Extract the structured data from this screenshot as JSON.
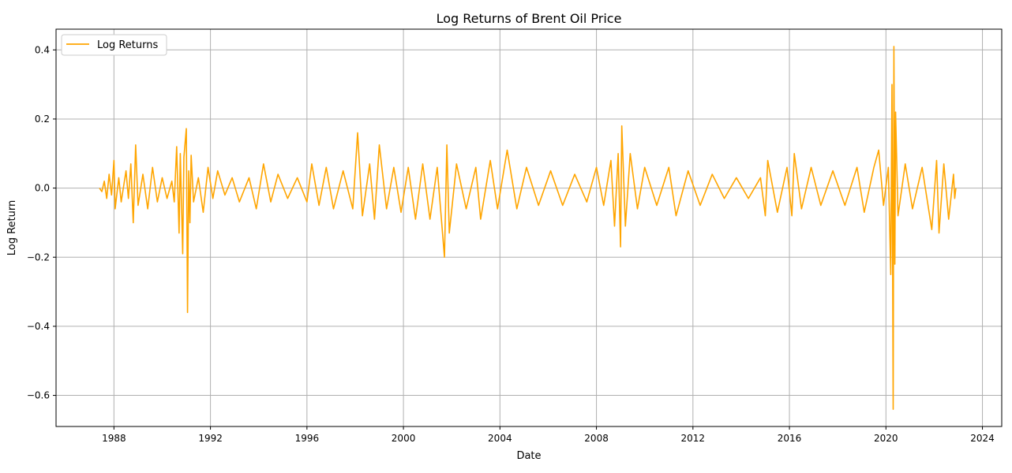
{
  "chart_data": {
    "type": "line",
    "title": "Log Returns of Brent Oil Price",
    "xlabel": "Date",
    "ylabel": "Log Return",
    "grid": true,
    "legend_position": "upper-left",
    "xlim": [
      1985.6,
      2024.8
    ],
    "ylim": [
      -0.69,
      0.46
    ],
    "x_ticks": [
      1988,
      1992,
      1996,
      2000,
      2004,
      2008,
      2012,
      2016,
      2020,
      2024
    ],
    "y_ticks": [
      0.4,
      0.2,
      0.0,
      -0.2,
      -0.4,
      -0.6
    ],
    "x_tick_labels": [
      "1988",
      "1992",
      "1996",
      "2000",
      "2004",
      "2008",
      "2012",
      "2016",
      "2020",
      "2024"
    ],
    "y_tick_labels": [
      "0.4",
      "0.2",
      "0.0",
      "−0.2",
      "−0.4",
      "−0.6"
    ],
    "series": [
      {
        "name": "Log Returns",
        "color": "#FFA500",
        "points": [
          [
            1987.4,
            0.0
          ],
          [
            1987.5,
            -0.01
          ],
          [
            1987.6,
            0.02
          ],
          [
            1987.7,
            -0.03
          ],
          [
            1987.8,
            0.04
          ],
          [
            1987.9,
            -0.02
          ],
          [
            1988.0,
            0.08
          ],
          [
            1988.05,
            -0.06
          ],
          [
            1988.2,
            0.03
          ],
          [
            1988.3,
            -0.04
          ],
          [
            1988.5,
            0.05
          ],
          [
            1988.6,
            -0.03
          ],
          [
            1988.7,
            0.07
          ],
          [
            1988.8,
            -0.1
          ],
          [
            1988.9,
            0.125
          ],
          [
            1989.0,
            -0.05
          ],
          [
            1989.2,
            0.04
          ],
          [
            1989.4,
            -0.06
          ],
          [
            1989.6,
            0.06
          ],
          [
            1989.8,
            -0.04
          ],
          [
            1990.0,
            0.03
          ],
          [
            1990.2,
            -0.03
          ],
          [
            1990.4,
            0.02
          ],
          [
            1990.5,
            -0.04
          ],
          [
            1990.6,
            0.12
          ],
          [
            1990.7,
            -0.13
          ],
          [
            1990.75,
            0.1
          ],
          [
            1990.85,
            -0.19
          ],
          [
            1990.9,
            0.09
          ],
          [
            1991.0,
            0.172
          ],
          [
            1991.05,
            -0.36
          ],
          [
            1991.1,
            0.05
          ],
          [
            1991.15,
            -0.1
          ],
          [
            1991.2,
            0.095
          ],
          [
            1991.3,
            -0.04
          ],
          [
            1991.5,
            0.03
          ],
          [
            1991.7,
            -0.07
          ],
          [
            1991.9,
            0.06
          ],
          [
            1992.1,
            -0.03
          ],
          [
            1992.3,
            0.05
          ],
          [
            1992.6,
            -0.02
          ],
          [
            1992.9,
            0.03
          ],
          [
            1993.2,
            -0.04
          ],
          [
            1993.6,
            0.03
          ],
          [
            1993.9,
            -0.06
          ],
          [
            1994.2,
            0.07
          ],
          [
            1994.5,
            -0.04
          ],
          [
            1994.8,
            0.04
          ],
          [
            1995.2,
            -0.03
          ],
          [
            1995.6,
            0.03
          ],
          [
            1996.0,
            -0.04
          ],
          [
            1996.2,
            0.07
          ],
          [
            1996.5,
            -0.05
          ],
          [
            1996.8,
            0.06
          ],
          [
            1997.1,
            -0.06
          ],
          [
            1997.5,
            0.05
          ],
          [
            1997.9,
            -0.06
          ],
          [
            1998.1,
            0.16
          ],
          [
            1998.3,
            -0.08
          ],
          [
            1998.6,
            0.07
          ],
          [
            1998.8,
            -0.09
          ],
          [
            1999.0,
            0.125
          ],
          [
            1999.3,
            -0.06
          ],
          [
            1999.6,
            0.06
          ],
          [
            1999.9,
            -0.07
          ],
          [
            2000.2,
            0.06
          ],
          [
            2000.5,
            -0.09
          ],
          [
            2000.8,
            0.07
          ],
          [
            2001.1,
            -0.09
          ],
          [
            2001.4,
            0.06
          ],
          [
            2001.7,
            -0.2
          ],
          [
            2001.8,
            0.125
          ],
          [
            2001.9,
            -0.13
          ],
          [
            2002.2,
            0.07
          ],
          [
            2002.6,
            -0.06
          ],
          [
            2003.0,
            0.06
          ],
          [
            2003.2,
            -0.09
          ],
          [
            2003.6,
            0.08
          ],
          [
            2003.9,
            -0.06
          ],
          [
            2004.3,
            0.11
          ],
          [
            2004.7,
            -0.06
          ],
          [
            2005.1,
            0.06
          ],
          [
            2005.6,
            -0.05
          ],
          [
            2006.1,
            0.05
          ],
          [
            2006.6,
            -0.05
          ],
          [
            2007.1,
            0.04
          ],
          [
            2007.6,
            -0.04
          ],
          [
            2008.0,
            0.06
          ],
          [
            2008.3,
            -0.05
          ],
          [
            2008.6,
            0.08
          ],
          [
            2008.75,
            -0.11
          ],
          [
            2008.9,
            0.1
          ],
          [
            2009.0,
            -0.17
          ],
          [
            2009.05,
            0.18
          ],
          [
            2009.2,
            -0.11
          ],
          [
            2009.4,
            0.1
          ],
          [
            2009.7,
            -0.06
          ],
          [
            2010.0,
            0.06
          ],
          [
            2010.5,
            -0.05
          ],
          [
            2011.0,
            0.06
          ],
          [
            2011.3,
            -0.08
          ],
          [
            2011.8,
            0.05
          ],
          [
            2012.3,
            -0.05
          ],
          [
            2012.8,
            0.04
          ],
          [
            2013.3,
            -0.03
          ],
          [
            2013.8,
            0.03
          ],
          [
            2014.3,
            -0.03
          ],
          [
            2014.8,
            0.03
          ],
          [
            2015.0,
            -0.08
          ],
          [
            2015.1,
            0.08
          ],
          [
            2015.5,
            -0.07
          ],
          [
            2015.9,
            0.06
          ],
          [
            2016.1,
            -0.08
          ],
          [
            2016.2,
            0.1
          ],
          [
            2016.5,
            -0.06
          ],
          [
            2016.9,
            0.06
          ],
          [
            2017.3,
            -0.05
          ],
          [
            2017.8,
            0.05
          ],
          [
            2018.3,
            -0.05
          ],
          [
            2018.8,
            0.06
          ],
          [
            2019.1,
            -0.07
          ],
          [
            2019.5,
            0.06
          ],
          [
            2019.7,
            0.11
          ],
          [
            2019.9,
            -0.05
          ],
          [
            2020.1,
            0.06
          ],
          [
            2020.2,
            -0.25
          ],
          [
            2020.25,
            0.3
          ],
          [
            2020.3,
            -0.64
          ],
          [
            2020.33,
            0.41
          ],
          [
            2020.37,
            -0.22
          ],
          [
            2020.4,
            0.22
          ],
          [
            2020.5,
            -0.08
          ],
          [
            2020.8,
            0.07
          ],
          [
            2021.1,
            -0.06
          ],
          [
            2021.5,
            0.06
          ],
          [
            2021.9,
            -0.12
          ],
          [
            2022.1,
            0.08
          ],
          [
            2022.2,
            -0.13
          ],
          [
            2022.4,
            0.07
          ],
          [
            2022.6,
            -0.09
          ],
          [
            2022.8,
            0.04
          ],
          [
            2022.85,
            -0.03
          ],
          [
            2022.9,
            0.0
          ]
        ]
      }
    ]
  }
}
